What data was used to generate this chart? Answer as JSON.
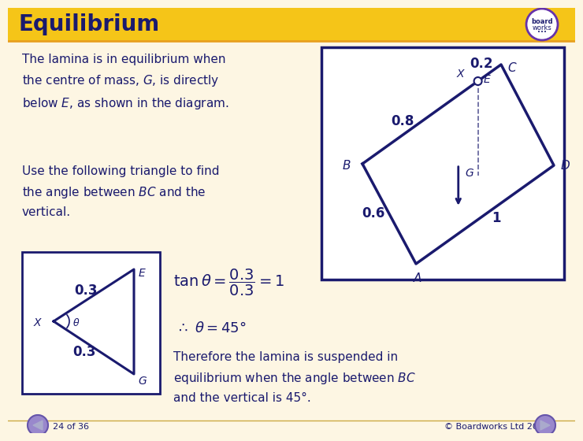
{
  "title": "Equilibrium",
  "title_bg_color": "#f5c518",
  "bg_color": "#fdf6e3",
  "navy": "#1a1a6e",
  "footer_left": "24 of 36",
  "footer_right": "© Boardworks Ltd 2006"
}
